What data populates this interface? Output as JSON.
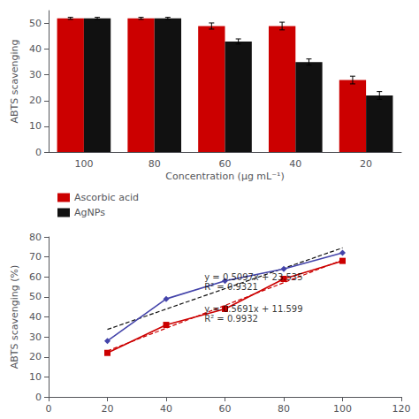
{
  "chart_data": [
    {
      "type": "bar",
      "categories": [
        100,
        80,
        60,
        40,
        20
      ],
      "xlabel": "Concentration (μg mL⁻¹)",
      "ylabel": "ABTS scavenging",
      "ylim": [
        0,
        55
      ],
      "yticks": [
        0,
        10,
        20,
        30,
        40,
        50
      ],
      "grid": false,
      "legend": "left",
      "series": [
        {
          "name": "Ascorbic acid",
          "color": "#cc0000",
          "values": [
            52,
            52,
            49,
            49,
            28
          ],
          "errors": [
            0.4,
            0.4,
            1.2,
            1.5,
            1.5
          ]
        },
        {
          "name": "AgNPs",
          "color": "#111111",
          "values": [
            52,
            52,
            43,
            35,
            22
          ],
          "errors": [
            0.4,
            0.4,
            1.0,
            1.2,
            1.5
          ]
        }
      ]
    },
    {
      "type": "line",
      "x": [
        20,
        40,
        60,
        80,
        100
      ],
      "ylabel": "ABTS scavenging (%)",
      "xlim": [
        0,
        120
      ],
      "xticks": [
        0,
        20,
        40,
        60,
        80,
        100,
        120
      ],
      "ylim": [
        0,
        80
      ],
      "yticks": [
        0,
        10,
        20,
        30,
        40,
        50,
        60,
        70,
        80
      ],
      "grid": false,
      "series": [
        {
          "color": "#111111",
          "line_style": "dashed",
          "marker": "none",
          "x": [
            20,
            100
          ],
          "values": [
            33.729,
            74.505
          ]
        },
        {
          "color": "#cc0000",
          "line_style": "dashed",
          "marker": "none",
          "x": [
            20,
            100
          ],
          "values": [
            22.981,
            68.509
          ]
        },
        {
          "color": "#4444aa",
          "line_style": "solid",
          "marker": "diamond",
          "values": [
            28,
            49,
            58,
            64,
            72
          ]
        },
        {
          "color": "#cc0000",
          "line_style": "solid",
          "marker": "square",
          "values": [
            22,
            36,
            44,
            59,
            68
          ]
        }
      ],
      "annotations": [
        {
          "text": "y = 0.5097x + 23.535",
          "x": 53,
          "y": 60,
          "color": "#000000"
        },
        {
          "text": "R² = 0.9321",
          "x": 53,
          "y": 55,
          "color": "#000000"
        },
        {
          "text": "y = 0.5691x + 11.599",
          "x": 53,
          "y": 44,
          "color": "#000000"
        },
        {
          "text": "R² = 0.9932",
          "x": 53,
          "y": 39,
          "color": "#000000"
        }
      ]
    }
  ]
}
